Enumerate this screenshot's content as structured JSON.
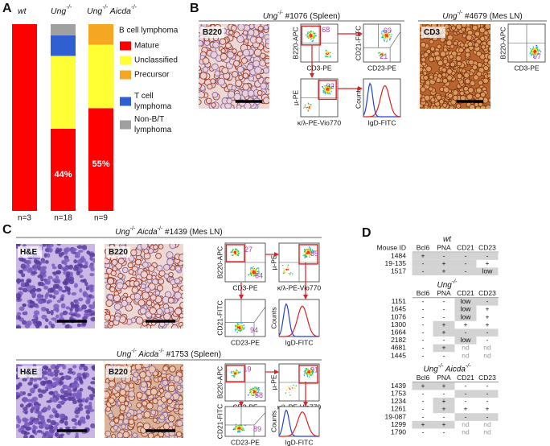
{
  "panel_labels": {
    "a": "A",
    "b": "B",
    "c": "C",
    "d": "D"
  },
  "chart_data": {
    "type": "bar",
    "stacked": true,
    "categories": [
      "wt",
      "Ung-/-",
      "Ung-/- Aicda-/-"
    ],
    "n_labels": [
      "n=3",
      "n=18",
      "n=9"
    ],
    "legend_title": "B cell lymphoma",
    "ylim": [
      0,
      100
    ],
    "series": [
      {
        "name": "Mature",
        "color": "#ff0000",
        "values": [
          100,
          44,
          55
        ],
        "value_labels": [
          null,
          "44%",
          "55%"
        ]
      },
      {
        "name": "Unclassified",
        "color": "#ffff33",
        "values": [
          0,
          39,
          34
        ]
      },
      {
        "name": "Precursor",
        "color": "#f5a623",
        "values": [
          0,
          0,
          11
        ]
      },
      {
        "name": "T cell lymphoma",
        "color": "#2f5fd0",
        "values": [
          0,
          11,
          0
        ]
      },
      {
        "name": "Non-B/T lymphoma",
        "color": "#a0a0a0",
        "values": [
          0,
          6,
          0
        ]
      }
    ]
  },
  "samples": [
    {
      "title": "Ung-/- #1076 (Spleen)",
      "stains": [
        "B220"
      ],
      "plots": [
        {
          "ylabel": "B220-APC",
          "xlabel": "CD3-PE",
          "gates": [
            68
          ]
        },
        {
          "ylabel": "CD21-FITC",
          "xlabel": "CD23-PE",
          "gates": [
            69,
            21
          ]
        },
        {
          "ylabel": "µ-PE",
          "xlabel": "κ/λ-PE-Vio770",
          "gates": [
            92
          ]
        },
        {
          "ylabel": "Counts",
          "xlabel": "IgD-FITC"
        }
      ]
    },
    {
      "title": "Ung-/- #4679 (Mes LN)",
      "stains": [
        "CD3"
      ],
      "plots": [
        {
          "ylabel": "B220-APC",
          "xlabel": "CD3-PE",
          "gates": [
            97
          ]
        }
      ]
    },
    {
      "title": "Ung-/- Aicda-/- #1439 (Mes LN)",
      "stains": [
        "H&E",
        "B220"
      ],
      "plots": [
        {
          "ylabel": "B220-APC",
          "xlabel": "CD3-PE",
          "gates": [
            27,
            64
          ]
        },
        {
          "ylabel": "µ-PE",
          "xlabel": "κ/λ-PE-Vio770",
          "gates": [
            85
          ]
        },
        {
          "ylabel": "CD21-FITC",
          "xlabel": "CD23-PE",
          "gates": [
            94
          ]
        },
        {
          "ylabel": "Counts",
          "xlabel": "IgD-FITC"
        }
      ]
    },
    {
      "title": "Ung-/- Aicda-/- #1753 (Spleen)",
      "stains": [
        "H&E",
        "B220"
      ],
      "plots": [
        {
          "ylabel": "B220-APC",
          "xlabel": "CD3-PE",
          "gates": [
            19,
            58
          ]
        },
        {
          "ylabel": "µ-PE",
          "xlabel": "κ/λ-PE-Vio770",
          "gates": [
            91
          ]
        },
        {
          "ylabel": "CD21-FITC",
          "xlabel": "CD23-PE",
          "gates": [
            89
          ]
        },
        {
          "ylabel": "Counts",
          "xlabel": "IgD-FITC"
        }
      ]
    }
  ],
  "table": {
    "header": [
      "Mouse ID",
      "Bcl6",
      "PNA",
      "CD21",
      "CD23"
    ],
    "groups": [
      {
        "title": "wt",
        "rows": [
          {
            "id": "1484",
            "cells": [
              "+",
              "-",
              "-",
              "-"
            ],
            "shaded": [
              true,
              true,
              true,
              true
            ]
          },
          {
            "id": "19-135",
            "cells": [
              "-",
              "+",
              "-",
              "+"
            ],
            "shaded": [
              true,
              true,
              true,
              false
            ]
          },
          {
            "id": "1517",
            "cells": [
              "-",
              "+",
              "-",
              "low"
            ],
            "shaded": [
              true,
              true,
              true,
              true
            ]
          }
        ]
      },
      {
        "title": "Ung-/-",
        "rows": [
          {
            "id": "1151",
            "cells": [
              "-",
              "-",
              "low",
              "-"
            ],
            "shaded": [
              false,
              false,
              true,
              true
            ]
          },
          {
            "id": "1645",
            "cells": [
              "-",
              "-",
              "low",
              "+"
            ],
            "shaded": [
              false,
              false,
              true,
              false
            ]
          },
          {
            "id": "1076",
            "cells": [
              "-",
              "-",
              "low",
              "+"
            ],
            "shaded": [
              false,
              false,
              true,
              false
            ]
          },
          {
            "id": "1300",
            "cells": [
              "-",
              "+",
              "+",
              "+"
            ],
            "shaded": [
              false,
              true,
              false,
              false
            ]
          },
          {
            "id": "1664",
            "cells": [
              "-",
              "+",
              "-",
              "-"
            ],
            "shaded": [
              false,
              true,
              true,
              true
            ]
          },
          {
            "id": "2182",
            "cells": [
              "-",
              "-",
              "low",
              "-"
            ],
            "shaded": [
              false,
              false,
              true,
              false
            ]
          },
          {
            "id": "4681",
            "cells": [
              "-",
              "+",
              "nd",
              "nd"
            ],
            "shaded": [
              false,
              true,
              false,
              false
            ]
          },
          {
            "id": "1445",
            "cells": [
              "-",
              "-",
              "nd",
              "nd"
            ],
            "shaded": [
              false,
              false,
              false,
              false
            ]
          }
        ]
      },
      {
        "title": "Ung-/- Aicda-/-",
        "rows": [
          {
            "id": "1439",
            "cells": [
              "+",
              "+",
              "-",
              "-"
            ],
            "shaded": [
              true,
              true,
              false,
              false
            ]
          },
          {
            "id": "1753",
            "cells": [
              "-",
              "-",
              "-",
              "-"
            ],
            "shaded": [
              false,
              false,
              true,
              true
            ]
          },
          {
            "id": "1234",
            "cells": [
              "-",
              "+",
              "-",
              "-"
            ],
            "shaded": [
              false,
              true,
              false,
              false
            ]
          },
          {
            "id": "1261",
            "cells": [
              "-",
              "+",
              "+",
              "+"
            ],
            "shaded": [
              false,
              true,
              false,
              false
            ]
          },
          {
            "id": "19-087",
            "cells": [
              "-",
              "-",
              "-",
              "-"
            ],
            "shaded": [
              false,
              false,
              true,
              true
            ]
          },
          {
            "id": "1299",
            "cells": [
              "+",
              "+",
              "nd",
              "nd"
            ],
            "shaded": [
              true,
              true,
              false,
              false
            ]
          },
          {
            "id": "1790",
            "cells": [
              "-",
              "-",
              "nd",
              "nd"
            ],
            "shaded": [
              false,
              false,
              false,
              false
            ]
          }
        ]
      }
    ]
  }
}
